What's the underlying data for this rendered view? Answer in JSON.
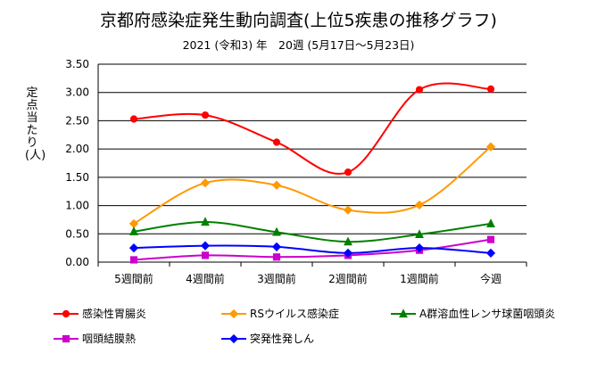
{
  "chart_data": {
    "type": "line",
    "title": "京都府感染症発生動向調査(上位5疾患の推移グラフ)",
    "subtitle": "2021 (令和3) 年　20週 (5月17日～5月23日)",
    "ylabel": "定点当たり (人)",
    "xlabel": "",
    "categories": [
      "5週間前",
      "4週間前",
      "3週間前",
      "2週間前",
      "1週間前",
      "今週"
    ],
    "ylim": [
      0,
      3.5
    ],
    "yticks": [
      "0.00",
      "0.50",
      "1.00",
      "1.50",
      "2.00",
      "2.50",
      "3.00",
      "3.50"
    ],
    "grid": "horizontal",
    "legend_position": "bottom",
    "series": [
      {
        "name": "感染性胃腸炎",
        "values": [
          2.53,
          2.6,
          2.12,
          1.59,
          3.05,
          3.06
        ],
        "color": "#ff0000",
        "marker": "circle"
      },
      {
        "name": "RSウイルス感染症",
        "values": [
          0.68,
          1.4,
          1.36,
          0.92,
          1.01,
          2.04
        ],
        "color": "#ff9900",
        "marker": "diamond"
      },
      {
        "name": "A群溶血性レンサ球菌咽頭炎",
        "values": [
          0.54,
          0.71,
          0.53,
          0.36,
          0.49,
          0.68
        ],
        "color": "#008000",
        "marker": "triangle"
      },
      {
        "name": "咽頭結膜熱",
        "values": [
          0.04,
          0.12,
          0.09,
          0.12,
          0.21,
          0.4
        ],
        "color": "#cc00cc",
        "marker": "square"
      },
      {
        "name": "突発性発しん",
        "values": [
          0.25,
          0.29,
          0.27,
          0.16,
          0.25,
          0.16
        ],
        "color": "#0000ff",
        "marker": "diamond"
      }
    ]
  }
}
